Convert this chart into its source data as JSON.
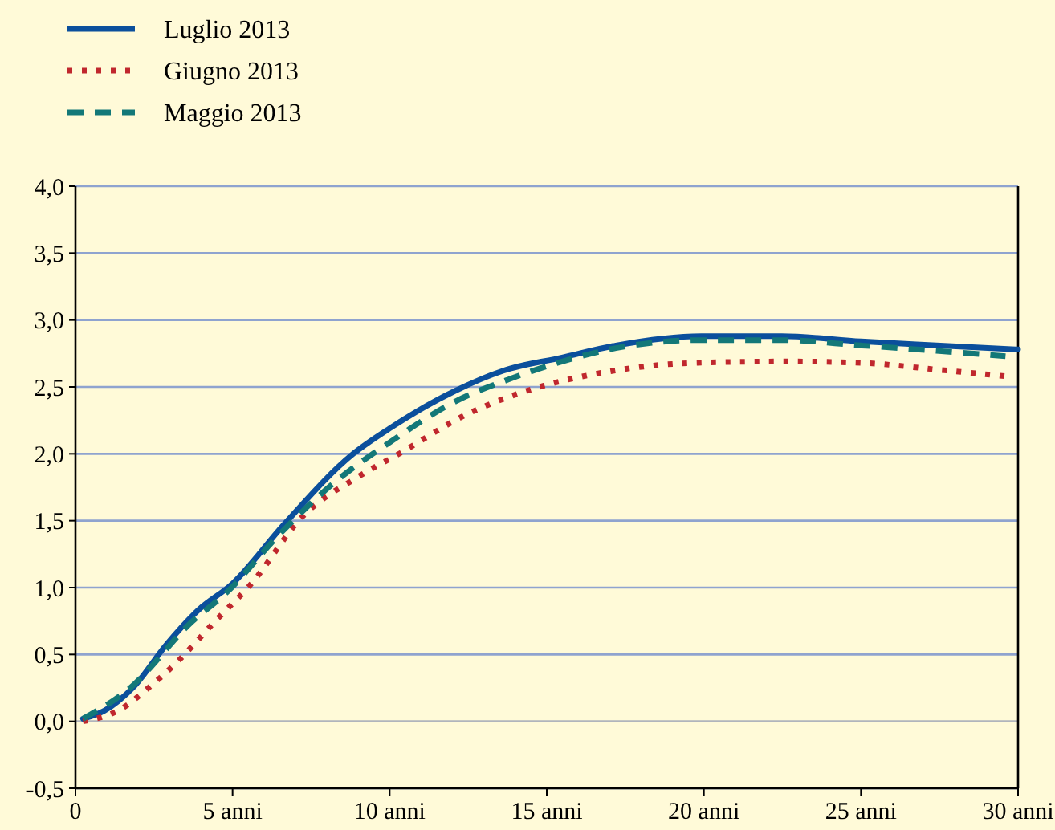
{
  "chart_data": {
    "type": "line",
    "x": [
      0.24,
      0.92,
      1.86,
      2.88,
      3.9,
      5,
      6.63,
      8.84,
      10,
      12.08,
      13.6,
      15.49,
      17.2,
      19.92,
      22.48,
      25,
      27.4,
      30
    ],
    "series": [
      {
        "name": "Luglio 2013",
        "color": "#0b4f9c",
        "line_style": "solid",
        "values": [
          0.02,
          0.08,
          0.26,
          0.57,
          0.83,
          1.03,
          1.47,
          2.0,
          2.19,
          2.47,
          2.62,
          2.72,
          2.81,
          2.88,
          2.88,
          2.84,
          2.81,
          2.78
        ]
      },
      {
        "name": "Giugno 2013",
        "color": "#c0272d",
        "line_style": "dotted",
        "x": [
          0.24,
          1.43,
          2.37,
          3.22,
          4.41,
          5.6,
          7.22,
          9.01,
          10.37,
          12.41,
          14.63,
          16.85,
          19.75,
          22.65,
          25,
          27.4,
          29.6
        ],
        "values": [
          0.0,
          0.09,
          0.26,
          0.44,
          0.74,
          1.03,
          1.53,
          1.83,
          2.01,
          2.29,
          2.49,
          2.61,
          2.68,
          2.69,
          2.68,
          2.63,
          2.58
        ]
      },
      {
        "name": "Maggio 2013",
        "color": "#137878",
        "line_style": "dashed",
        "x": [
          0.24,
          1.69,
          3.73,
          4.75,
          6.46,
          8.16,
          10.03,
          12.08,
          13.95,
          15.49,
          17.2,
          19.92,
          22.48,
          25,
          27.4,
          29.6
        ],
        "values": [
          0.02,
          0.24,
          0.75,
          0.95,
          1.39,
          1.77,
          2.09,
          2.39,
          2.57,
          2.69,
          2.79,
          2.85,
          2.85,
          2.81,
          2.77,
          2.73
        ]
      }
    ],
    "xlim": [
      0,
      30
    ],
    "xticks": [
      0,
      {
        "value": 5,
        "label": "5 anni"
      },
      {
        "value": 10,
        "label": "10 anni"
      },
      {
        "value": 15,
        "label": "15 anni"
      },
      {
        "value": 20,
        "label": "20 anni"
      },
      {
        "value": 25,
        "label": "25 anni"
      },
      {
        "value": 30,
        "label": "30 anni"
      }
    ],
    "ylim": [
      -0.5,
      4
    ],
    "yticks": [
      {
        "value": -0.5,
        "label": "-0,5"
      },
      {
        "value": 0,
        "label": "0,0"
      },
      {
        "value": 0.5,
        "label": "0,5"
      },
      {
        "value": 1,
        "label": "1,0"
      },
      {
        "value": 1.5,
        "label": "1,5"
      },
      {
        "value": 2,
        "label": "2,0"
      },
      {
        "value": 2.5,
        "label": "2,5"
      },
      {
        "value": 3,
        "label": "3,0"
      },
      {
        "value": 3.5,
        "label": "3,5"
      },
      {
        "value": 4,
        "label": "4,0"
      }
    ],
    "grid": "y",
    "legend": "top left",
    "marker": "none"
  }
}
